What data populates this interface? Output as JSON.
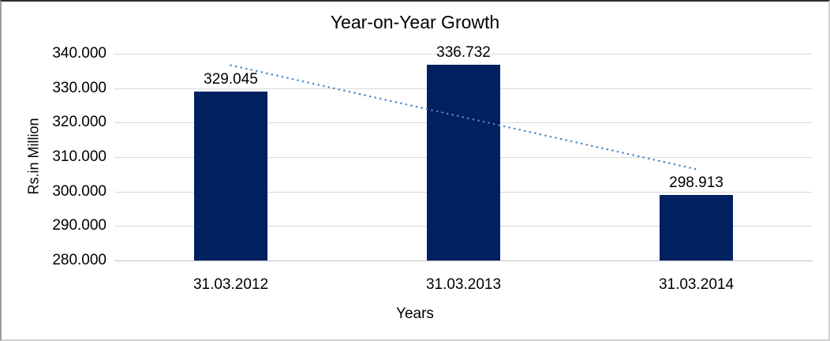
{
  "chart_data": {
    "type": "bar",
    "title": "Year-on-Year Growth",
    "categories": [
      "31.03.2012",
      "31.03.2013",
      "31.03.2014"
    ],
    "values": [
      329.045,
      336.732,
      298.913
    ],
    "data_labels": [
      "329.045",
      "336.732",
      "298.913"
    ],
    "xlabel": "Years",
    "ylabel": "Rs.in Million",
    "ylim": [
      280,
      340
    ],
    "ytick_step": 10,
    "ytick_labels": [
      "280.000",
      "290.000",
      "300.000",
      "310.000",
      "320.000",
      "330.000",
      "340.000"
    ],
    "grid": true,
    "legend": false,
    "trendline": {
      "type": "linear",
      "style": "dotted"
    },
    "colors": {
      "bar": "#002060",
      "trendline": "#4E87C8",
      "gridline": "#D9D9D9",
      "axis_line": "#BFBFBF",
      "text": "#000000",
      "background": "#FFFFFF"
    }
  }
}
